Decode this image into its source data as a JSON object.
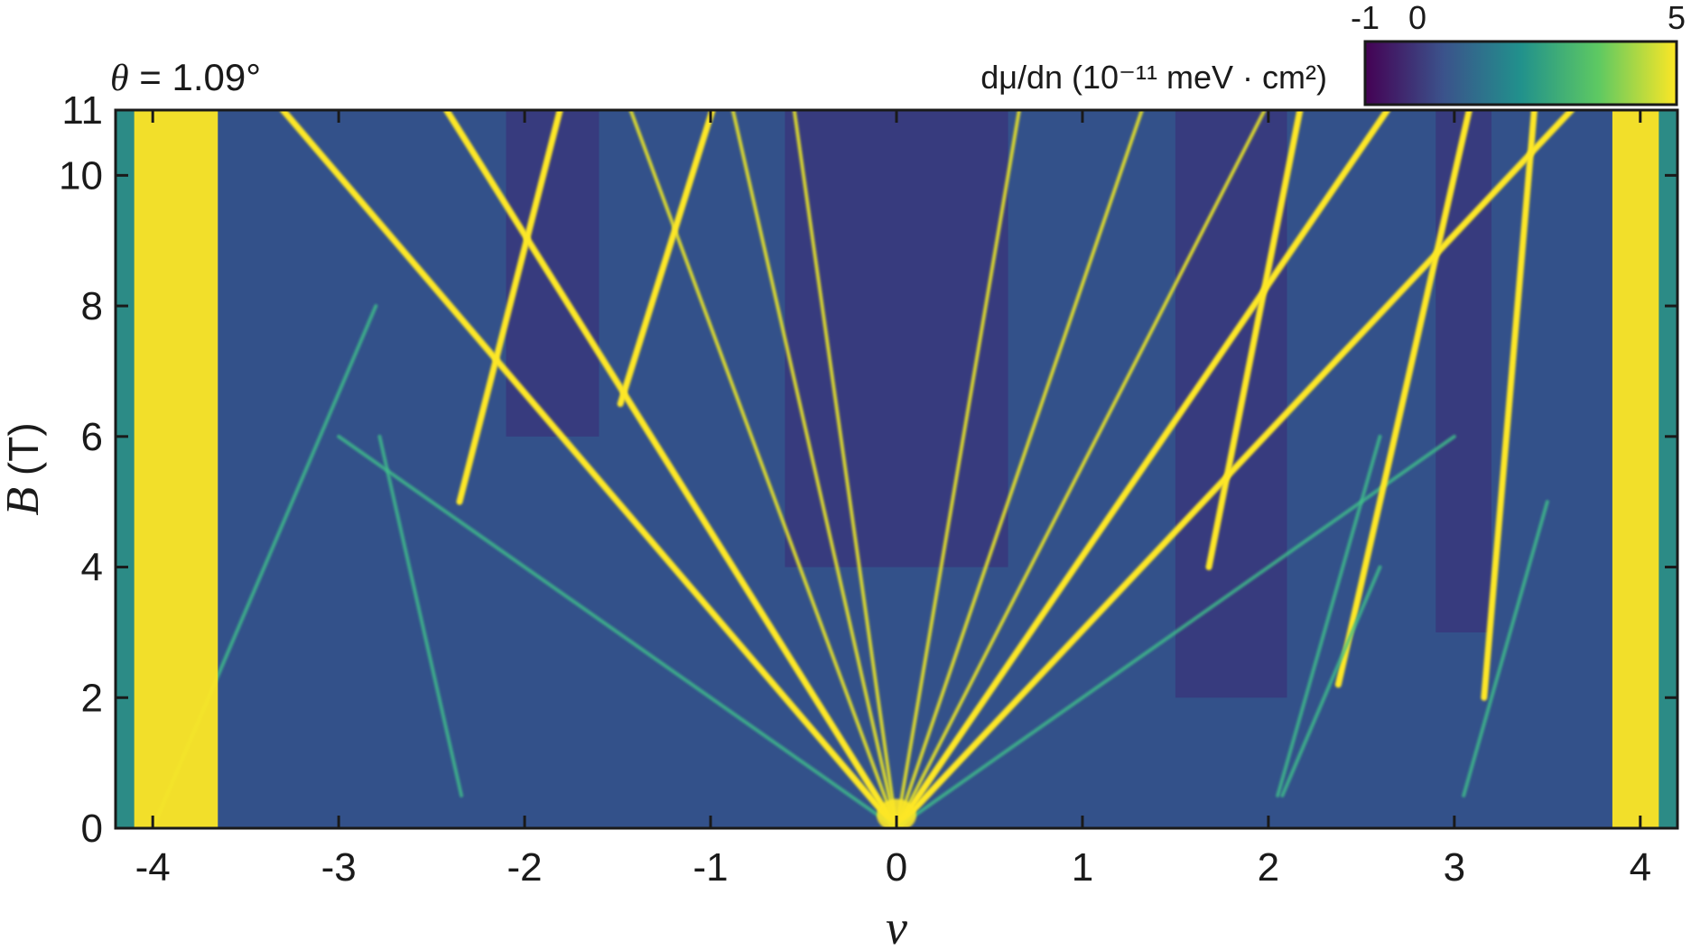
{
  "chart_data": {
    "type": "heatmap",
    "annotation": {
      "symbol": "θ",
      "text": " = 1.09°"
    },
    "xlabel": "ν",
    "ylabel": {
      "symbol": "B",
      "unit": " (T)"
    },
    "xlim": [
      -4.2,
      4.2
    ],
    "ylim": [
      0,
      11
    ],
    "x_ticks": [
      -4,
      -3,
      -2,
      -1,
      0,
      1,
      2,
      3,
      4
    ],
    "y_ticks": [
      0,
      2,
      4,
      6,
      8,
      10,
      11
    ],
    "colorbar": {
      "label": "dμ/dn (10⁻¹¹ meV · cm²)",
      "min": -1,
      "max": 5,
      "ticks": [
        "-1",
        "0",
        "5"
      ],
      "colors": [
        "#440154",
        "#3b528b",
        "#21918c",
        "#5ec962",
        "#fde725"
      ]
    },
    "fan_lines": [
      {
        "v0": 0,
        "slope": -0.3,
        "b_start": 0,
        "b_end": 11,
        "intensity": "high"
      },
      {
        "v0": 0,
        "slope": -0.22,
        "b_start": 0,
        "b_end": 11,
        "intensity": "high"
      },
      {
        "v0": 0,
        "slope": -0.13,
        "b_start": 0,
        "b_end": 11,
        "intensity": "med"
      },
      {
        "v0": 0,
        "slope": -0.08,
        "b_start": 0,
        "b_end": 11,
        "intensity": "med"
      },
      {
        "v0": 0,
        "slope": -0.05,
        "b_start": 0,
        "b_end": 11,
        "intensity": "med"
      },
      {
        "v0": 0,
        "slope": 0.0,
        "b_start": 0,
        "b_end": 11,
        "intensity": "high"
      },
      {
        "v0": 0,
        "slope": 0.06,
        "b_start": 0,
        "b_end": 11,
        "intensity": "med"
      },
      {
        "v0": 0,
        "slope": 0.12,
        "b_start": 0,
        "b_end": 11,
        "intensity": "med"
      },
      {
        "v0": 0,
        "slope": 0.18,
        "b_start": 0,
        "b_end": 11,
        "intensity": "med"
      },
      {
        "v0": 0,
        "slope": 0.24,
        "b_start": 0,
        "b_end": 11,
        "intensity": "high"
      },
      {
        "v0": 0,
        "slope": 0.33,
        "b_start": 0,
        "b_end": 11,
        "intensity": "high"
      },
      {
        "v0": 0,
        "slope": -0.5,
        "b_start": 0,
        "b_end": 6,
        "intensity": "low"
      },
      {
        "v0": 0,
        "slope": 0.5,
        "b_start": 0,
        "b_end": 6,
        "intensity": "low"
      },
      {
        "v0": -2.8,
        "slope": 0.09,
        "b_start": 5,
        "b_end": 11,
        "intensity": "high"
      },
      {
        "v0": -2.2,
        "slope": 0.11,
        "b_start": 6.5,
        "b_end": 11,
        "intensity": "high"
      },
      {
        "v0": 2.2,
        "slope": 0.08,
        "b_start": 2.2,
        "b_end": 11,
        "intensity": "high"
      },
      {
        "v0": 3.1,
        "slope": 0.03,
        "b_start": 2.0,
        "b_end": 11,
        "intensity": "high"
      },
      {
        "v0": 1.4,
        "slope": 0.07,
        "b_start": 4.0,
        "b_end": 11,
        "intensity": "high"
      },
      {
        "v0": -4.0,
        "slope": 0.15,
        "b_start": 0,
        "b_end": 8,
        "intensity": "low"
      },
      {
        "v0": -2.3,
        "slope": -0.08,
        "b_start": 0.5,
        "b_end": 6,
        "intensity": "low"
      },
      {
        "v0": 2.0,
        "slope": 0.1,
        "b_start": 0.5,
        "b_end": 6,
        "intensity": "low"
      },
      {
        "v0": 2.0,
        "slope": 0.15,
        "b_start": 0.5,
        "b_end": 4,
        "intensity": "low"
      },
      {
        "v0": 3.0,
        "slope": 0.1,
        "b_start": 0.5,
        "b_end": 5,
        "intensity": "low"
      }
    ]
  }
}
